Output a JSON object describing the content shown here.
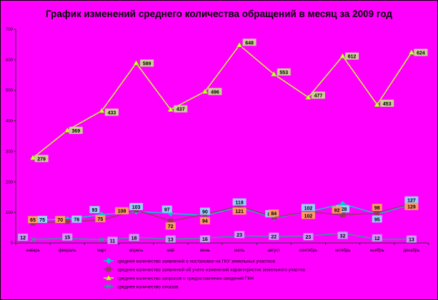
{
  "chart_data": {
    "type": "line",
    "title": "График изменений среднего количества обращений в месяц за 2009 год",
    "xlabel": "",
    "ylabel": "",
    "ylim": [
      0,
      700
    ],
    "yticks": [
      0,
      100,
      200,
      300,
      400,
      500,
      600,
      700
    ],
    "grid": false,
    "legend_position": "bottom",
    "categories": [
      "январь",
      "февраль",
      "март",
      "апрель",
      "май",
      "июнь",
      "июль",
      "август",
      "сентябрь",
      "октябрь",
      "ноябрь",
      "декабрь"
    ],
    "series": [
      {
        "name": "среднее количество заявлений о постановке на ГКУ земельных участков",
        "color": "#00cccc",
        "marker": "diamond",
        "label_bg": "#99ccff",
        "values": [
          75,
          78,
          93,
          103,
          97,
          90,
          118,
          82,
          102,
          128,
          95,
          127
        ]
      },
      {
        "name": "среднее количество заявлений об учете изменений характеристик земельного участка",
        "color": "#993366",
        "marker": "square",
        "label_bg": "#ff9966",
        "values": [
          65,
          70,
          75,
          108,
          72,
          94,
          121,
          84,
          102,
          92,
          98,
          129
        ]
      },
      {
        "name": "среднее количество запросов о предоставлении сведений ГКН",
        "color": "#ccff33",
        "marker": "triangle",
        "label_bg": "#cccc99",
        "values": [
          279,
          369,
          433,
          589,
          437,
          496,
          648,
          553,
          477,
          612,
          453,
          624
        ]
      },
      {
        "name": "среднее количество отказов",
        "color": "#339999",
        "marker": "x",
        "label_bg": "#cc99ff",
        "values": [
          12,
          15,
          11,
          18,
          13,
          16,
          23,
          22,
          23,
          32,
          12,
          13
        ]
      }
    ]
  }
}
